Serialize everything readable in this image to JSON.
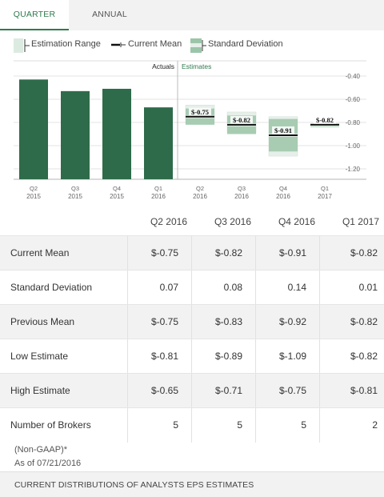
{
  "tabs": {
    "quarter": "QUARTER",
    "annual": "ANNUAL"
  },
  "legend": {
    "estimation_range": "Estimation Range",
    "current_mean": "Current Mean",
    "standard_deviation": "Standard Deviation"
  },
  "chart_data": {
    "type": "bar",
    "section_labels": {
      "actuals": "Actuals",
      "estimates": "Estimates"
    },
    "ylim": [
      -1.2,
      -0.4
    ],
    "y_ticks": [
      -0.4,
      -0.6,
      -0.8,
      -1.0,
      -1.2
    ],
    "y_tick_labels": [
      "-0.40",
      "-0.60",
      "-0.80",
      "-1.00",
      "-1.20"
    ],
    "actuals": [
      {
        "quarter": "Q2",
        "year": "2015",
        "value": -0.43
      },
      {
        "quarter": "Q3",
        "year": "2015",
        "value": -0.53
      },
      {
        "quarter": "Q4",
        "year": "2015",
        "value": -0.51
      },
      {
        "quarter": "Q1",
        "year": "2016",
        "value": -0.67
      }
    ],
    "estimates": [
      {
        "quarter": "Q2",
        "year": "2016",
        "mean": -0.75,
        "mean_label": "$-0.75",
        "low": -0.81,
        "high": -0.65,
        "std": 0.07
      },
      {
        "quarter": "Q3",
        "year": "2016",
        "mean": -0.82,
        "mean_label": "$-0.82",
        "low": -0.89,
        "high": -0.71,
        "std": 0.08
      },
      {
        "quarter": "Q4",
        "year": "2016",
        "mean": -0.91,
        "mean_label": "$-0.91",
        "low": -1.09,
        "high": -0.75,
        "std": 0.14
      },
      {
        "quarter": "Q1",
        "year": "2017",
        "mean": -0.82,
        "mean_label": "$-0.82",
        "low": -0.82,
        "high": -0.81,
        "std": 0.01
      }
    ],
    "colors": {
      "actual_bar": "#2e6b4a",
      "range": "#e6efe9",
      "std": "#9bc5a8",
      "mean": "#111111",
      "grid": "#e3e3e3"
    }
  },
  "table": {
    "columns": [
      "Q2 2016",
      "Q3 2016",
      "Q4 2016",
      "Q1 2017"
    ],
    "rows": [
      {
        "label": "Current Mean",
        "values": [
          "$-0.75",
          "$-0.82",
          "$-0.91",
          "$-0.82"
        ]
      },
      {
        "label": "Standard Deviation",
        "values": [
          "0.07",
          "0.08",
          "0.14",
          "0.01"
        ]
      },
      {
        "label": "Previous Mean",
        "values": [
          "$-0.75",
          "$-0.83",
          "$-0.92",
          "$-0.82"
        ]
      },
      {
        "label": "Low Estimate",
        "values": [
          "$-0.81",
          "$-0.89",
          "$-1.09",
          "$-0.82"
        ]
      },
      {
        "label": "High Estimate",
        "values": [
          "$-0.65",
          "$-0.71",
          "$-0.75",
          "$-0.81"
        ]
      },
      {
        "label": "Number of Brokers",
        "values": [
          "5",
          "5",
          "5",
          "2"
        ]
      }
    ]
  },
  "footnote": {
    "gaap": "(Non-GAAP)*",
    "as_of": "As of 07/21/2016"
  },
  "footer": {
    "title": "CURRENT DISTRIBUTIONS OF ANALYSTS EPS ESTIMATES"
  }
}
